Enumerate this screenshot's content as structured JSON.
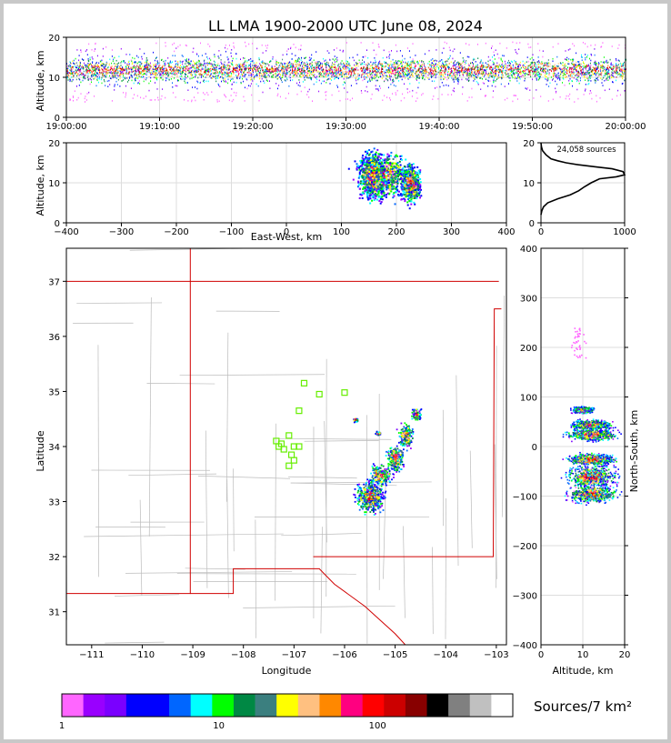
{
  "title": "LL LMA 1900-2000 UTC June 08, 2024",
  "chart_data": [
    {
      "id": "time-height",
      "type": "scatter",
      "xlabel": "",
      "ylabel": "Altitude, km",
      "x_ticks": [
        "19:00:00",
        "19:10:00",
        "19:20:00",
        "19:30:00",
        "19:40:00",
        "19:50:00",
        "20:00:00"
      ],
      "xlim": [
        "19:00:00",
        "20:00:00"
      ],
      "ylim": [
        0,
        20
      ],
      "y_ticks": [
        0,
        10,
        20
      ],
      "grid": true,
      "note_band_km": [
        5,
        18
      ]
    },
    {
      "id": "ew-altitude",
      "type": "scatter",
      "xlabel": "East-West, km",
      "ylabel": "Altitude, km",
      "xlim": [
        -400,
        400
      ],
      "ylim": [
        0,
        20
      ],
      "x_ticks": [
        -400,
        -300,
        -200,
        -100,
        0,
        100,
        200,
        300,
        400
      ],
      "y_ticks": [
        0,
        10,
        20
      ],
      "grid": true,
      "clusters": [
        {
          "x": 175,
          "y": 12,
          "dx": 40,
          "dy": 5
        },
        {
          "x": 225,
          "y": 10,
          "dx": 15,
          "dy": 4
        },
        {
          "x": 155,
          "y": 12,
          "dx": 20,
          "dy": 5
        }
      ]
    },
    {
      "id": "altitude-histogram",
      "type": "line",
      "annotation": "24,058 sources",
      "xlim": [
        0,
        1000
      ],
      "ylim": [
        0,
        20
      ],
      "x_ticks": [
        0,
        1000
      ],
      "y_ticks": [
        0,
        10,
        20
      ],
      "grid": true,
      "x": [
        0,
        10,
        30,
        80,
        200,
        350,
        450,
        520,
        600,
        700,
        900,
        1000,
        980,
        850,
        650,
        450,
        300,
        200,
        120,
        60,
        20,
        5,
        0
      ],
      "y": [
        2,
        3,
        4,
        5,
        6,
        7,
        8,
        9,
        10,
        11,
        11.5,
        12,
        12.8,
        13.5,
        14,
        14.5,
        15,
        15.5,
        16,
        17,
        18,
        19,
        20
      ]
    },
    {
      "id": "plan-view-map",
      "type": "scatter",
      "xlabel": "Longitude",
      "ylabel": "Latitude",
      "xlim": [
        -111.5,
        -102.8
      ],
      "ylim": [
        30.4,
        37.6
      ],
      "x_ticks": [
        -111,
        -110,
        -109,
        -108,
        -107,
        -106,
        -105,
        -104,
        -103
      ],
      "y_ticks": [
        31,
        32,
        33,
        34,
        35,
        36,
        37
      ],
      "stations": [
        [
          -107.2,
          33.95
        ],
        [
          -107.3,
          34.0
        ],
        [
          -107.1,
          34.2
        ],
        [
          -107.0,
          34.0
        ],
        [
          -106.9,
          34.0
        ],
        [
          -107.05,
          33.85
        ],
        [
          -107.1,
          33.65
        ],
        [
          -107.0,
          33.75
        ],
        [
          -106.9,
          34.65
        ],
        [
          -106.8,
          35.15
        ],
        [
          -106.5,
          34.95
        ],
        [
          -106.0,
          34.98
        ],
        [
          -107.35,
          34.1
        ],
        [
          -107.25,
          34.05
        ]
      ],
      "clusters": [
        {
          "lon": -105.5,
          "lat": 33.1,
          "dlon": 0.25,
          "dlat": 0.25
        },
        {
          "lon": -105.3,
          "lat": 33.5,
          "dlon": 0.2,
          "dlat": 0.15
        },
        {
          "lon": -105.0,
          "lat": 33.8,
          "dlon": 0.15,
          "dlat": 0.2
        },
        {
          "lon": -104.8,
          "lat": 34.2,
          "dlon": 0.12,
          "dlat": 0.2
        },
        {
          "lon": -104.6,
          "lat": 34.6,
          "dlon": 0.08,
          "dlat": 0.1
        },
        {
          "lon": -105.35,
          "lat": 34.25,
          "dlon": 0.05,
          "dlat": 0.03
        },
        {
          "lon": -105.8,
          "lat": 34.5,
          "dlon": 0.05,
          "dlat": 0.03
        }
      ]
    },
    {
      "id": "altitude-ns",
      "type": "scatter",
      "xlabel": "Altitude, km",
      "ylabel": "North-South, km",
      "xlim": [
        0,
        20
      ],
      "ylim": [
        -400,
        400
      ],
      "x_ticks": [
        0,
        10,
        20
      ],
      "y_ticks": [
        -400,
        -300,
        -200,
        -100,
        0,
        100,
        200,
        300,
        400
      ],
      "grid": true,
      "clusters": [
        {
          "x": 12,
          "y": -60,
          "dx": 5,
          "dy": 20
        },
        {
          "x": 12,
          "y": -95,
          "dx": 5,
          "dy": 15
        },
        {
          "x": 12,
          "y": 25,
          "dx": 5,
          "dy": 10
        },
        {
          "x": 12,
          "y": 45,
          "dx": 4,
          "dy": 8
        },
        {
          "x": 10,
          "y": 75,
          "dx": 2,
          "dy": 5
        },
        {
          "x": 12,
          "y": -25,
          "dx": 5,
          "dy": 10
        }
      ]
    }
  ],
  "colorbar": {
    "label": "Sources/7 km²",
    "tick_labels": [
      "1",
      "10",
      "100"
    ],
    "colors": [
      "#ff66ff",
      "#9900ff",
      "#7a00ff",
      "#0000ff",
      "#0000ff",
      "#0066ff",
      "#00ffff",
      "#00ff00",
      "#008844",
      "#3b7f7f",
      "#ffff00",
      "#ffc080",
      "#ff8800",
      "#ff0080",
      "#ff0000",
      "#cc0000",
      "#880000",
      "#000000",
      "#808080",
      "#c0c0c0",
      "#ffffff"
    ]
  }
}
